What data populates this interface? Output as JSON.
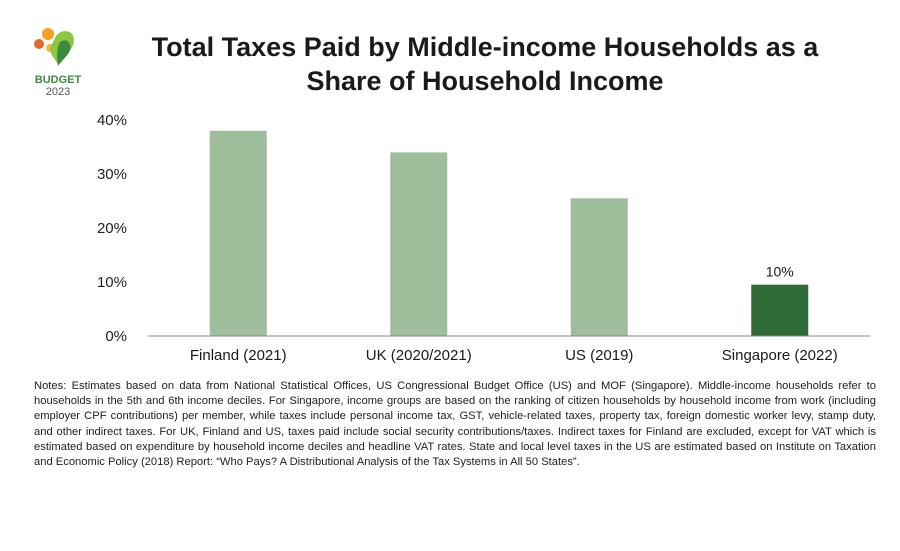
{
  "logo": {
    "text": "BUDGET",
    "year": "2023",
    "colors": [
      "#f4a020",
      "#e2672b",
      "#8dc63f",
      "#3d8a3f"
    ]
  },
  "title": "Total Taxes Paid by Middle-income Households as a Share of Household Income",
  "chart_data": {
    "type": "bar",
    "categories": [
      "Finland (2021)",
      "UK (2020/2021)",
      "US (2019)",
      "Singapore (2022)"
    ],
    "values": [
      38,
      34,
      25.5,
      9.5
    ],
    "data_labels": [
      "",
      "",
      "",
      "10%"
    ],
    "bar_colors": [
      "#9dbd9b",
      "#9dbd9b",
      "#9dbd9b",
      "#2f6b36"
    ],
    "yticks": [
      "0%",
      "10%",
      "20%",
      "30%",
      "40%"
    ],
    "ytick_values": [
      0,
      10,
      20,
      30,
      40
    ],
    "ylim": [
      0,
      40
    ],
    "grid": false,
    "legend": "none"
  },
  "notes": "Notes: Estimates based on data from National Statistical Offices, US Congressional Budget Office (US) and MOF (Singapore). Middle-income households refer to households in the 5th and 6th income deciles. For Singapore, income groups are based on the ranking of citizen households by household income from work (including employer CPF contributions) per member, while taxes include personal income tax, GST, vehicle-related taxes, property tax, foreign domestic worker levy, stamp duty, and other indirect taxes. For UK, Finland and US, taxes paid include social security contributions/taxes. Indirect taxes for Finland are excluded, except for VAT which is estimated based on expenditure by household income deciles and headline VAT rates. State and local level taxes in the US are estimated based on Institute on Taxation and Economic Policy (2018) Report: “Who Pays? A Distributional Analysis of the Tax Systems in All 50 States”."
}
